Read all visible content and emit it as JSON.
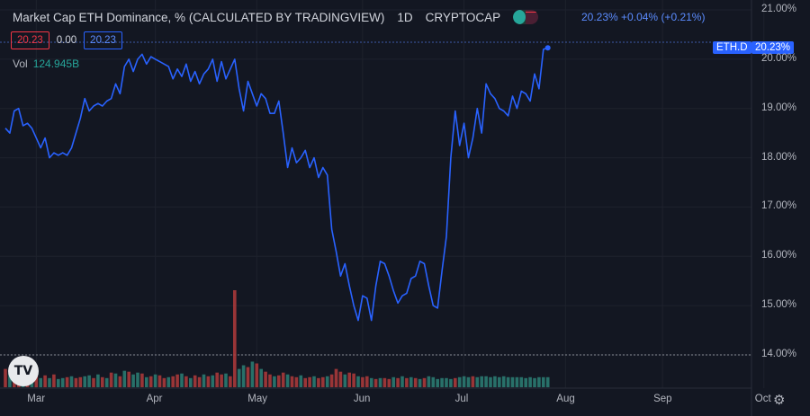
{
  "header": {
    "title": "Market Cap ETH Dominance, % (CALCULATED BY TRADINGVIEW)",
    "interval": "1D",
    "exchange": "CRYPTOCAP",
    "last_value": "20.23%",
    "change": "+0.04%",
    "change_percent": "(+0.21%)"
  },
  "trade": {
    "sell": "20.23",
    "spread": "0.00",
    "buy": "20.23"
  },
  "volume": {
    "label": "Vol",
    "value": "124.945B"
  },
  "price_tag": {
    "symbol": "ETH.D",
    "value": "20.23%"
  },
  "logo": "TV",
  "icons": {
    "settings": "gear-icon",
    "logo": "tradingview-logo"
  },
  "colors": {
    "background": "#131722",
    "line": "#2962ff",
    "vol_up": "#26a69a",
    "vol_down": "#ef5350",
    "text": "#b2b5be"
  },
  "chart_data": {
    "type": "line",
    "title": "Market Cap ETH Dominance, %",
    "y_ticks": [
      "21.00%",
      "20.00%",
      "19.00%",
      "18.00%",
      "17.00%",
      "16.00%",
      "15.00%",
      "14.00%"
    ],
    "ylim": [
      13.7,
      21.1
    ],
    "x_ticks": [
      "Mar",
      "Apr",
      "May",
      "Jun",
      "Jul",
      "Aug",
      "Sep",
      "Oct"
    ],
    "x_tick_index": [
      7,
      34,
      57,
      81,
      104,
      127,
      149,
      172
    ],
    "x_range": [
      0,
      176
    ],
    "series": [
      {
        "values": [
          18.6,
          18.5,
          18.95,
          19.0,
          18.65,
          18.7,
          18.6,
          18.4,
          18.2,
          18.4,
          18.0,
          18.1,
          18.05,
          18.1,
          18.05,
          18.2,
          18.5,
          18.8,
          19.2,
          18.95,
          19.05,
          19.1,
          19.05,
          19.15,
          19.2,
          19.5,
          19.3,
          19.85,
          20.0,
          19.75,
          20.0,
          20.1,
          19.9,
          20.05,
          20.0,
          19.95,
          19.9,
          19.85,
          19.6,
          19.8,
          19.65,
          19.9,
          19.55,
          19.75,
          19.5,
          19.7,
          19.8,
          20.0,
          19.55,
          19.95,
          19.6,
          19.8,
          20.0,
          19.4,
          18.95,
          19.55,
          19.3,
          19.05,
          19.3,
          19.2,
          18.9,
          18.9,
          19.15,
          18.5,
          17.8,
          18.2,
          17.9,
          18.0,
          18.15,
          17.8,
          18.0,
          17.6,
          17.8,
          17.65,
          16.55,
          16.1,
          15.6,
          15.85,
          15.4,
          15.0,
          14.7,
          15.2,
          15.15,
          14.7,
          15.4,
          15.9,
          15.85,
          15.6,
          15.3,
          15.05,
          15.2,
          15.25,
          15.55,
          15.6,
          15.9,
          15.85,
          15.4,
          15.0,
          14.95,
          15.7,
          16.4,
          18.0,
          18.95,
          18.25,
          18.7,
          18.0,
          18.4,
          19.0,
          18.5,
          19.5,
          19.3,
          19.2,
          19.0,
          18.95,
          18.85,
          19.25,
          19.0,
          19.35,
          19.3,
          19.15,
          19.7,
          19.4,
          20.2,
          20.23
        ]
      }
    ],
    "volume": {
      "label": "Vol",
      "max": 5.3,
      "values": [
        1.0,
        0.8,
        0.6,
        0.5,
        0.55,
        0.45,
        0.5,
        0.6,
        0.5,
        0.65,
        0.5,
        0.7,
        0.45,
        0.5,
        0.55,
        0.6,
        0.5,
        0.55,
        0.6,
        0.65,
        0.5,
        0.7,
        0.55,
        0.5,
        0.8,
        0.75,
        0.6,
        0.9,
        0.85,
        0.7,
        0.8,
        0.75,
        0.55,
        0.6,
        0.7,
        0.65,
        0.5,
        0.55,
        0.6,
        0.7,
        0.75,
        0.6,
        0.5,
        0.65,
        0.55,
        0.7,
        0.6,
        0.65,
        0.8,
        0.7,
        0.75,
        0.6,
        5.3,
        1.0,
        1.2,
        1.1,
        1.4,
        1.3,
        1.0,
        0.85,
        0.7,
        0.6,
        0.65,
        0.8,
        0.7,
        0.6,
        0.55,
        0.65,
        0.5,
        0.55,
        0.6,
        0.5,
        0.55,
        0.6,
        0.7,
        1.0,
        0.85,
        0.7,
        0.8,
        0.75,
        0.6,
        0.55,
        0.6,
        0.5,
        0.45,
        0.5,
        0.5,
        0.45,
        0.55,
        0.5,
        0.6,
        0.5,
        0.55,
        0.5,
        0.45,
        0.5,
        0.6,
        0.55,
        0.45,
        0.5,
        0.5,
        0.45,
        0.5,
        0.55,
        0.6,
        0.55,
        0.6,
        0.55,
        0.6,
        0.6,
        0.55,
        0.6,
        0.55,
        0.6,
        0.55,
        0.55,
        0.55,
        0.55,
        0.5,
        0.55,
        0.5,
        0.55,
        0.55,
        0.55
      ],
      "up": [
        false,
        true,
        false,
        false,
        true,
        false,
        true,
        false,
        true,
        false,
        true,
        false,
        true,
        true,
        false,
        true,
        false,
        false,
        true,
        true,
        false,
        true,
        false,
        true,
        false,
        true,
        false,
        true,
        false,
        true,
        true,
        false,
        true,
        false,
        true,
        false,
        false,
        true,
        false,
        false,
        true,
        false,
        true,
        false,
        false,
        true,
        false,
        true,
        false,
        false,
        true,
        false,
        false,
        true,
        true,
        false,
        true,
        false,
        true,
        false,
        false,
        true,
        false,
        false,
        true,
        false,
        false,
        true,
        false,
        false,
        true,
        false,
        false,
        true,
        false,
        false,
        false,
        true,
        false,
        false,
        true,
        false,
        false,
        true,
        false,
        true,
        false,
        false,
        true,
        false,
        true,
        false,
        true,
        false,
        true,
        false,
        true,
        true,
        true,
        true,
        true,
        true,
        false,
        true,
        true,
        true,
        false,
        true,
        true,
        true,
        true,
        true,
        true,
        true,
        true,
        true,
        true,
        true,
        true,
        true,
        true,
        true,
        true,
        true
      ]
    }
  }
}
